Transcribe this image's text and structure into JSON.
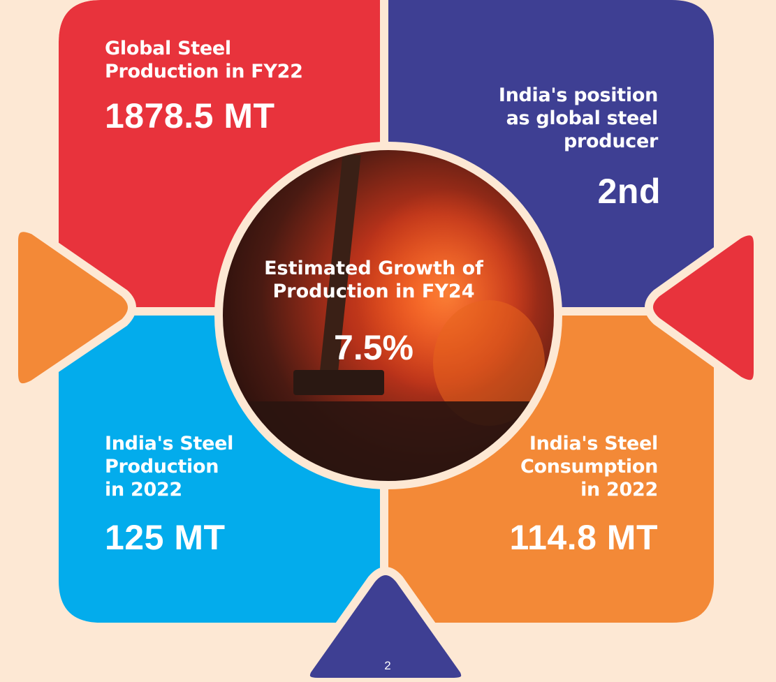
{
  "colors": {
    "background": "#fde8d4",
    "red": "#e8333c",
    "indigo": "#3e3f93",
    "cyan": "#03acec",
    "orange": "#f38937"
  },
  "tiles": {
    "global_production": {
      "label_lines": [
        "Global Steel",
        "Production in FY22"
      ],
      "value": "1878.5 MT"
    },
    "india_position": {
      "label_lines": [
        "India's position",
        "as global steel",
        "producer"
      ],
      "value": "2nd"
    },
    "india_production": {
      "label_lines": [
        "India's Steel",
        "Production",
        "in 2022"
      ],
      "value": "125 MT"
    },
    "india_consumption": {
      "label_lines": [
        "India's Steel",
        "Consumption",
        "in 2022"
      ],
      "value": "114.8 MT"
    }
  },
  "center": {
    "label_lines": [
      "Estimated Growth of",
      "Production in FY24"
    ],
    "value": "7.5%",
    "image_icon": "hammer-forge-photo"
  },
  "footer": {
    "page_number": "2"
  }
}
